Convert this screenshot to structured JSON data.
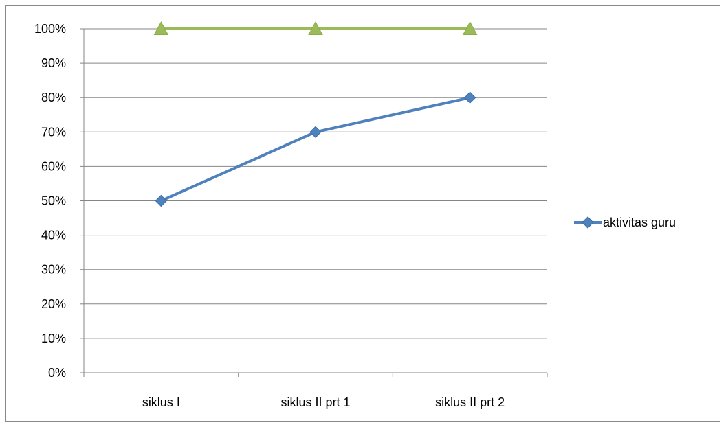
{
  "chart_data": {
    "type": "line",
    "categories": [
      "siklus I",
      "siklus II prt 1",
      "siklus II prt 2"
    ],
    "series": [
      {
        "name": "aktivitas guru",
        "values": [
          50,
          70,
          80
        ],
        "color": "#4f81bd",
        "marker": "diamond",
        "in_legend": true
      },
      {
        "name": "",
        "values": [
          100,
          100,
          100
        ],
        "color": "#9bbb59",
        "marker": "triangle",
        "in_legend": false
      }
    ],
    "y_ticks": [
      "0%",
      "10%",
      "20%",
      "30%",
      "40%",
      "50%",
      "60%",
      "70%",
      "80%",
      "90%",
      "100%"
    ],
    "ylim": [
      0,
      100
    ],
    "y_unit": "%",
    "grid": true,
    "legend_position": "right",
    "title": "",
    "xlabel": "",
    "ylabel": ""
  }
}
